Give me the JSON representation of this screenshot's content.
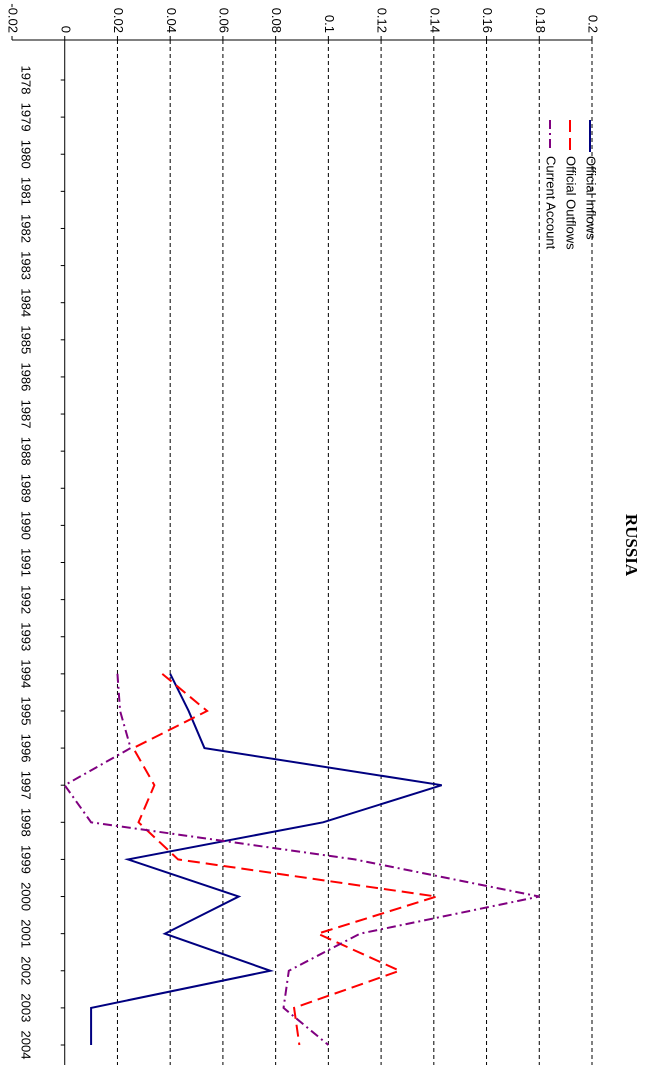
{
  "chart_data": {
    "type": "line",
    "title": "RUSSIA",
    "x": [
      1978,
      1979,
      1980,
      1981,
      1982,
      1983,
      1984,
      1985,
      1986,
      1987,
      1988,
      1989,
      1990,
      1991,
      1992,
      1993,
      1994,
      1995,
      1996,
      1997,
      1998,
      1999,
      2000,
      2001,
      2002,
      2003,
      2004
    ],
    "series": [
      {
        "name": "Official Inflows",
        "color": "#000080",
        "dash": "solid",
        "values": [
          null,
          null,
          null,
          null,
          null,
          null,
          null,
          null,
          null,
          null,
          null,
          null,
          null,
          null,
          null,
          null,
          0.04,
          0.047,
          0.053,
          0.143,
          0.098,
          0.024,
          0.066,
          0.038,
          0.078,
          0.01,
          0.01
        ]
      },
      {
        "name": "Official Outflows",
        "color": "#ff0000",
        "dash": "dash",
        "values": [
          null,
          null,
          null,
          null,
          null,
          null,
          null,
          null,
          null,
          null,
          null,
          null,
          null,
          null,
          null,
          null,
          0.037,
          0.054,
          0.026,
          0.034,
          0.028,
          0.043,
          0.141,
          0.096,
          0.127,
          0.087,
          0.089
        ]
      },
      {
        "name": "Current Account",
        "color": "#800080",
        "dash": "dashdot",
        "values": [
          null,
          null,
          null,
          null,
          null,
          null,
          null,
          null,
          null,
          null,
          null,
          null,
          null,
          null,
          null,
          null,
          0.02,
          0.021,
          0.025,
          0,
          0.01,
          0.11,
          0.18,
          0.112,
          0.085,
          0.083,
          0.1
        ]
      }
    ],
    "ylim": [
      -0.02,
      0.2
    ],
    "yticks": [
      -0.02,
      0,
      0.02,
      0.04,
      0.06,
      0.08,
      0.1,
      0.12,
      0.14,
      0.16,
      0.18,
      0.2
    ],
    "grid": true,
    "legend": "top-right"
  }
}
